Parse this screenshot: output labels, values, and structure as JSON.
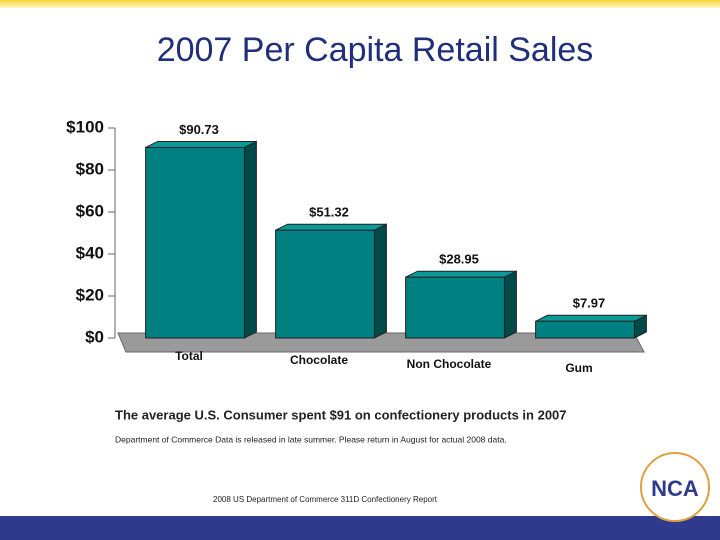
{
  "chart_data": {
    "type": "bar3d",
    "title": "2007 Per Capita Retail Sales",
    "categories": [
      "Total",
      "Chocolate",
      "Non Chocolate",
      "Gum"
    ],
    "values": [
      90.73,
      51.32,
      28.95,
      7.97
    ],
    "value_labels": [
      "$90.73",
      "$51.32",
      "$28.95",
      "$7.97"
    ],
    "color": "#008080",
    "ylim": [
      0,
      100
    ],
    "yticks": [
      {
        "value": 0,
        "label": "$0"
      },
      {
        "value": 20,
        "label": "$20"
      },
      {
        "value": 40,
        "label": "$40"
      },
      {
        "value": 60,
        "label": "$60"
      },
      {
        "value": 80,
        "label": "$80"
      },
      {
        "value": 100,
        "label": "$100"
      }
    ]
  },
  "slide": {
    "caption": "The average U.S. Consumer spent $91 on confectionery products in  2007",
    "note": "Department of Commerce Data is released in late summer.  Please return in August for actual 2008 data.",
    "source": "2008 US Department of Commerce 311D Confectionery Report",
    "logo": "NCA"
  }
}
